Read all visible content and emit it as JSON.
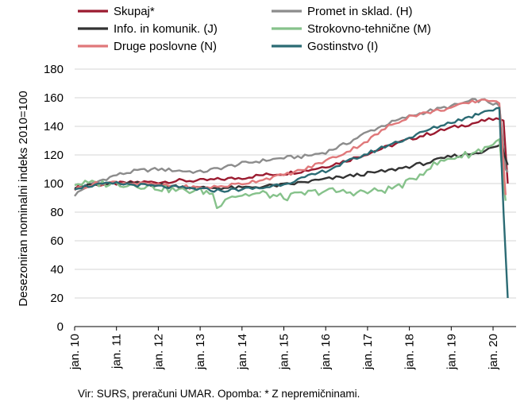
{
  "footnote": "Vir: SURS, preračuni UMAR. Opomba: * Z nepremičninami.",
  "chart_data": {
    "type": "line",
    "title": "",
    "xlabel": "",
    "ylabel": "Desezoniran nominalni indeks 2010=100",
    "ylim": [
      0,
      180
    ],
    "yticks": [
      0,
      20,
      40,
      60,
      80,
      100,
      120,
      140,
      160,
      180
    ],
    "xlim": [
      2010,
      2020.55
    ],
    "xticks": [
      "jan. 10",
      "jan. 11",
      "jan. 12",
      "jan. 13",
      "jan. 14",
      "jan. 15",
      "jan. 16",
      "jan. 17",
      "jan. 18",
      "jan. 19",
      "jan. 20"
    ],
    "grid": "horizontal",
    "legend_position": "top",
    "series": [
      {
        "name": "Skupaj*",
        "color": "#9b1b30",
        "points": [
          [
            2010.0,
            97
          ],
          [
            2010.5,
            99
          ],
          [
            2011.0,
            100
          ],
          [
            2011.5,
            101
          ],
          [
            2012.0,
            101
          ],
          [
            2012.5,
            102
          ],
          [
            2013.0,
            102
          ],
          [
            2013.5,
            103
          ],
          [
            2014.0,
            104
          ],
          [
            2014.5,
            106
          ],
          [
            2015.0,
            107
          ],
          [
            2015.5,
            109
          ],
          [
            2016.0,
            112
          ],
          [
            2016.5,
            116
          ],
          [
            2017.0,
            121
          ],
          [
            2017.5,
            126
          ],
          [
            2018.0,
            131
          ],
          [
            2018.5,
            135
          ],
          [
            2019.0,
            139
          ],
          [
            2019.5,
            142
          ],
          [
            2019.8,
            144
          ],
          [
            2020.0,
            145
          ],
          [
            2020.15,
            145
          ],
          [
            2020.25,
            144
          ],
          [
            2020.35,
            100
          ]
        ]
      },
      {
        "name": "Promet in sklad. (H)",
        "color": "#8c8c8c",
        "points": [
          [
            2010.0,
            92
          ],
          [
            2010.3,
            98
          ],
          [
            2010.6,
            102
          ],
          [
            2011.0,
            106
          ],
          [
            2011.5,
            109
          ],
          [
            2012.0,
            110
          ],
          [
            2012.5,
            109
          ],
          [
            2013.0,
            108
          ],
          [
            2013.5,
            111
          ],
          [
            2014.0,
            114
          ],
          [
            2014.5,
            116
          ],
          [
            2015.0,
            118
          ],
          [
            2015.5,
            119
          ],
          [
            2016.0,
            122
          ],
          [
            2016.5,
            128
          ],
          [
            2017.0,
            136
          ],
          [
            2017.5,
            142
          ],
          [
            2018.0,
            147
          ],
          [
            2018.5,
            151
          ],
          [
            2019.0,
            154
          ],
          [
            2019.5,
            158
          ],
          [
            2019.8,
            158
          ],
          [
            2020.0,
            156
          ],
          [
            2020.15,
            154
          ],
          [
            2020.3,
            110
          ],
          [
            2020.35,
            108
          ]
        ]
      },
      {
        "name": "Info. in komunik. (J)",
        "color": "#333333",
        "points": [
          [
            2010.0,
            98
          ],
          [
            2010.5,
            99
          ],
          [
            2011.0,
            100
          ],
          [
            2011.5,
            100
          ],
          [
            2012.0,
            99
          ],
          [
            2012.5,
            98
          ],
          [
            2013.0,
            97
          ],
          [
            2013.5,
            97
          ],
          [
            2014.0,
            97
          ],
          [
            2014.5,
            98
          ],
          [
            2015.0,
            99
          ],
          [
            2015.5,
            101
          ],
          [
            2016.0,
            103
          ],
          [
            2016.5,
            105
          ],
          [
            2017.0,
            107
          ],
          [
            2017.5,
            109
          ],
          [
            2018.0,
            112
          ],
          [
            2018.5,
            115
          ],
          [
            2019.0,
            119
          ],
          [
            2019.5,
            121
          ],
          [
            2019.8,
            123
          ],
          [
            2020.0,
            125
          ],
          [
            2020.2,
            127
          ],
          [
            2020.35,
            113
          ]
        ]
      },
      {
        "name": "Strokovno-tehnične (M)",
        "color": "#86c28b",
        "points": [
          [
            2010.0,
            100
          ],
          [
            2010.5,
            100
          ],
          [
            2011.0,
            100
          ],
          [
            2011.5,
            99
          ],
          [
            2012.0,
            97
          ],
          [
            2012.5,
            95
          ],
          [
            2013.0,
            95
          ],
          [
            2013.3,
            93
          ],
          [
            2013.4,
            82
          ],
          [
            2013.6,
            91
          ],
          [
            2014.0,
            92
          ],
          [
            2014.5,
            93
          ],
          [
            2015.0,
            90
          ],
          [
            2015.5,
            93
          ],
          [
            2016.0,
            95
          ],
          [
            2016.5,
            94
          ],
          [
            2017.0,
            94
          ],
          [
            2017.5,
            96
          ],
          [
            2018.0,
            101
          ],
          [
            2018.5,
            112
          ],
          [
            2019.0,
            118
          ],
          [
            2019.5,
            121
          ],
          [
            2019.8,
            125
          ],
          [
            2020.0,
            128
          ],
          [
            2020.15,
            130
          ],
          [
            2020.3,
            88
          ]
        ]
      },
      {
        "name": "Druge poslovne (N)",
        "color": "#e0787a",
        "points": [
          [
            2010.0,
            96
          ],
          [
            2010.5,
            100
          ],
          [
            2011.0,
            101
          ],
          [
            2011.5,
            100
          ],
          [
            2012.0,
            99
          ],
          [
            2012.5,
            98
          ],
          [
            2013.0,
            97
          ],
          [
            2013.5,
            98
          ],
          [
            2014.0,
            100
          ],
          [
            2014.5,
            103
          ],
          [
            2015.0,
            106
          ],
          [
            2015.5,
            110
          ],
          [
            2016.0,
            116
          ],
          [
            2016.5,
            122
          ],
          [
            2017.0,
            130
          ],
          [
            2017.5,
            140
          ],
          [
            2018.0,
            147
          ],
          [
            2018.5,
            150
          ],
          [
            2019.0,
            153
          ],
          [
            2019.5,
            157
          ],
          [
            2019.8,
            159
          ],
          [
            2020.0,
            158
          ],
          [
            2020.15,
            155
          ],
          [
            2020.3,
            92
          ]
        ]
      },
      {
        "name": "Gostinstvo (I)",
        "color": "#2b6b74",
        "points": [
          [
            2010.0,
            97
          ],
          [
            2010.5,
            99
          ],
          [
            2011.0,
            100
          ],
          [
            2011.5,
            99
          ],
          [
            2012.0,
            98
          ],
          [
            2012.5,
            97
          ],
          [
            2013.0,
            96
          ],
          [
            2013.5,
            95
          ],
          [
            2014.0,
            96
          ],
          [
            2014.5,
            97
          ],
          [
            2015.0,
            100
          ],
          [
            2015.5,
            104
          ],
          [
            2016.0,
            109
          ],
          [
            2016.5,
            115
          ],
          [
            2017.0,
            121
          ],
          [
            2017.5,
            127
          ],
          [
            2018.0,
            132
          ],
          [
            2018.5,
            138
          ],
          [
            2019.0,
            143
          ],
          [
            2019.5,
            147
          ],
          [
            2019.8,
            151
          ],
          [
            2020.0,
            152
          ],
          [
            2020.15,
            153
          ],
          [
            2020.25,
            80
          ],
          [
            2020.35,
            20
          ]
        ]
      }
    ]
  }
}
